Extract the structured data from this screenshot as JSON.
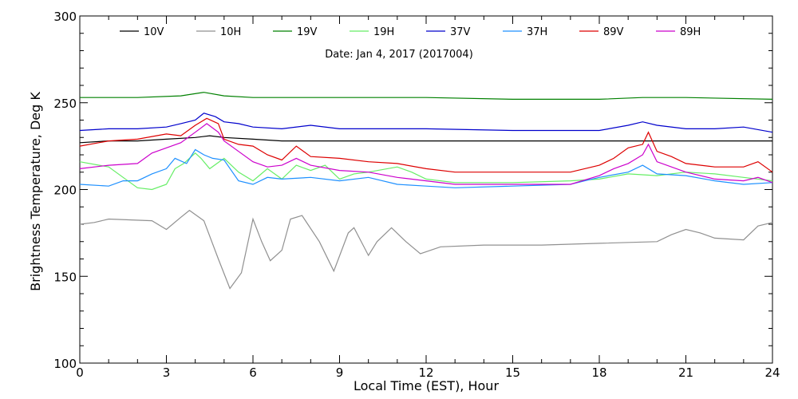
{
  "chart_data": {
    "type": "line",
    "title": "",
    "subtitle": "Date: Jan  4, 2017 (2017004)",
    "xlabel": "Local Time (EST), Hour",
    "ylabel": "Brightness Temperature, Deg K",
    "xlim": [
      0,
      24
    ],
    "ylim": [
      100,
      300
    ],
    "x_ticks": [
      0,
      3,
      6,
      9,
      12,
      15,
      18,
      21,
      24
    ],
    "y_ticks": [
      100,
      150,
      200,
      250,
      300
    ],
    "x_tick_labels": [
      "0",
      "3",
      "6",
      "9",
      "12",
      "15",
      "18",
      "21",
      "24"
    ],
    "y_tick_labels": [
      "100",
      "150",
      "200",
      "250",
      "300"
    ],
    "grid": false,
    "legend_position": "top",
    "series": [
      {
        "name": "10V",
        "color": "#000000",
        "points": [
          [
            0,
            227
          ],
          [
            1,
            228
          ],
          [
            2,
            228
          ],
          [
            3,
            229
          ],
          [
            4,
            230
          ],
          [
            4.5,
            231
          ],
          [
            5,
            230
          ],
          [
            6,
            229
          ],
          [
            7,
            228
          ],
          [
            9,
            228
          ],
          [
            12,
            228
          ],
          [
            15,
            228
          ],
          [
            18,
            228
          ],
          [
            20,
            228
          ],
          [
            21,
            228
          ],
          [
            24,
            228
          ]
        ]
      },
      {
        "name": "10H",
        "color": "#909090",
        "points": [
          [
            0,
            180
          ],
          [
            0.5,
            181
          ],
          [
            1,
            183
          ],
          [
            2.5,
            182
          ],
          [
            3,
            177
          ],
          [
            3.5,
            184
          ],
          [
            3.8,
            188
          ],
          [
            4.3,
            182
          ],
          [
            4.8,
            160
          ],
          [
            5.2,
            143
          ],
          [
            5.6,
            152
          ],
          [
            6,
            183
          ],
          [
            6.3,
            170
          ],
          [
            6.6,
            159
          ],
          [
            7,
            165
          ],
          [
            7.3,
            183
          ],
          [
            7.7,
            185
          ],
          [
            8.3,
            170
          ],
          [
            8.8,
            153
          ],
          [
            9.3,
            175
          ],
          [
            9.5,
            178
          ],
          [
            10,
            162
          ],
          [
            10.3,
            170
          ],
          [
            10.8,
            178
          ],
          [
            11.3,
            170
          ],
          [
            11.8,
            163
          ],
          [
            12.5,
            167
          ],
          [
            14,
            168
          ],
          [
            16,
            168
          ],
          [
            18,
            169
          ],
          [
            20,
            170
          ],
          [
            20.5,
            174
          ],
          [
            21,
            177
          ],
          [
            21.5,
            175
          ],
          [
            22,
            172
          ],
          [
            23,
            171
          ],
          [
            23.5,
            179
          ],
          [
            24,
            181
          ]
        ]
      },
      {
        "name": "19V",
        "color": "#008000",
        "points": [
          [
            0,
            253
          ],
          [
            2,
            253
          ],
          [
            3.5,
            254
          ],
          [
            4.3,
            256
          ],
          [
            5,
            254
          ],
          [
            6,
            253
          ],
          [
            9,
            253
          ],
          [
            12,
            253
          ],
          [
            15,
            252
          ],
          [
            18,
            252
          ],
          [
            19.5,
            253
          ],
          [
            21,
            253
          ],
          [
            24,
            252
          ]
        ]
      },
      {
        "name": "19H",
        "color": "#66ee66",
        "points": [
          [
            0,
            216
          ],
          [
            1,
            213
          ],
          [
            1.5,
            207
          ],
          [
            2,
            201
          ],
          [
            2.5,
            200
          ],
          [
            3,
            203
          ],
          [
            3.3,
            212
          ],
          [
            3.6,
            215
          ],
          [
            4,
            221
          ],
          [
            4.2,
            218
          ],
          [
            4.5,
            212
          ],
          [
            5,
            218
          ],
          [
            5.5,
            210
          ],
          [
            6,
            205
          ],
          [
            6.5,
            212
          ],
          [
            7,
            206
          ],
          [
            7.5,
            214
          ],
          [
            8,
            211
          ],
          [
            8.5,
            214
          ],
          [
            9,
            206
          ],
          [
            9.5,
            209
          ],
          [
            10,
            210
          ],
          [
            11,
            213
          ],
          [
            11.5,
            210
          ],
          [
            12,
            206
          ],
          [
            13,
            204
          ],
          [
            15,
            204
          ],
          [
            17,
            205
          ],
          [
            18,
            206
          ],
          [
            19,
            209
          ],
          [
            20,
            208
          ],
          [
            21,
            210
          ],
          [
            22,
            209
          ],
          [
            23,
            207
          ],
          [
            24,
            205
          ]
        ]
      },
      {
        "name": "37V",
        "color": "#0000cc",
        "points": [
          [
            0,
            234
          ],
          [
            1,
            235
          ],
          [
            2,
            235
          ],
          [
            3,
            236
          ],
          [
            3.5,
            238
          ],
          [
            4,
            240
          ],
          [
            4.3,
            244
          ],
          [
            4.7,
            242
          ],
          [
            5,
            239
          ],
          [
            5.5,
            238
          ],
          [
            6,
            236
          ],
          [
            7,
            235
          ],
          [
            8,
            237
          ],
          [
            9,
            235
          ],
          [
            12,
            235
          ],
          [
            15,
            234
          ],
          [
            18,
            234
          ],
          [
            19,
            237
          ],
          [
            19.5,
            239
          ],
          [
            20,
            237
          ],
          [
            21,
            235
          ],
          [
            22,
            235
          ],
          [
            23,
            236
          ],
          [
            24,
            233
          ]
        ]
      },
      {
        "name": "37H",
        "color": "#1e90ff",
        "points": [
          [
            0,
            203
          ],
          [
            1,
            202
          ],
          [
            1.5,
            205
          ],
          [
            2,
            205
          ],
          [
            2.5,
            209
          ],
          [
            3,
            212
          ],
          [
            3.3,
            218
          ],
          [
            3.7,
            215
          ],
          [
            4,
            223
          ],
          [
            4.3,
            220
          ],
          [
            4.6,
            218
          ],
          [
            5,
            217
          ],
          [
            5.5,
            205
          ],
          [
            6,
            203
          ],
          [
            6.5,
            207
          ],
          [
            7,
            206
          ],
          [
            8,
            207
          ],
          [
            9,
            205
          ],
          [
            10,
            207
          ],
          [
            11,
            203
          ],
          [
            12,
            202
          ],
          [
            13,
            201
          ],
          [
            15,
            202
          ],
          [
            17,
            203
          ],
          [
            17.5,
            205
          ],
          [
            18,
            207
          ],
          [
            19,
            210
          ],
          [
            19.5,
            214
          ],
          [
            20,
            209
          ],
          [
            21,
            208
          ],
          [
            22,
            205
          ],
          [
            23,
            203
          ],
          [
            24,
            204
          ]
        ]
      },
      {
        "name": "89V",
        "color": "#dd0000",
        "points": [
          [
            0,
            225
          ],
          [
            1,
            228
          ],
          [
            2,
            229
          ],
          [
            3,
            232
          ],
          [
            3.5,
            231
          ],
          [
            4,
            237
          ],
          [
            4.4,
            241
          ],
          [
            4.8,
            238
          ],
          [
            5,
            229
          ],
          [
            5.5,
            226
          ],
          [
            6,
            225
          ],
          [
            6.5,
            220
          ],
          [
            7,
            217
          ],
          [
            7.5,
            225
          ],
          [
            8,
            219
          ],
          [
            9,
            218
          ],
          [
            10,
            216
          ],
          [
            11,
            215
          ],
          [
            12,
            212
          ],
          [
            13,
            210
          ],
          [
            15,
            210
          ],
          [
            17,
            210
          ],
          [
            18,
            214
          ],
          [
            18.5,
            218
          ],
          [
            19,
            224
          ],
          [
            19.5,
            226
          ],
          [
            19.7,
            233
          ],
          [
            20,
            222
          ],
          [
            20.5,
            219
          ],
          [
            21,
            215
          ],
          [
            22,
            213
          ],
          [
            23,
            213
          ],
          [
            23.5,
            216
          ],
          [
            24,
            210
          ]
        ]
      },
      {
        "name": "89H",
        "color": "#cc00cc",
        "points": [
          [
            0,
            212
          ],
          [
            1,
            214
          ],
          [
            2,
            215
          ],
          [
            2.5,
            221
          ],
          [
            3,
            224
          ],
          [
            3.5,
            227
          ],
          [
            4,
            233
          ],
          [
            4.4,
            238
          ],
          [
            4.8,
            233
          ],
          [
            5,
            228
          ],
          [
            5.5,
            222
          ],
          [
            6,
            216
          ],
          [
            6.5,
            213
          ],
          [
            7,
            214
          ],
          [
            7.5,
            218
          ],
          [
            8,
            214
          ],
          [
            9,
            211
          ],
          [
            10,
            210
          ],
          [
            11,
            207
          ],
          [
            12,
            205
          ],
          [
            13,
            203
          ],
          [
            15,
            203
          ],
          [
            17,
            203
          ],
          [
            18,
            208
          ],
          [
            18.5,
            212
          ],
          [
            19,
            215
          ],
          [
            19.5,
            220
          ],
          [
            19.7,
            226
          ],
          [
            20,
            216
          ],
          [
            21,
            210
          ],
          [
            22,
            206
          ],
          [
            23,
            205
          ],
          [
            23.5,
            207
          ],
          [
            24,
            204
          ]
        ]
      }
    ]
  }
}
